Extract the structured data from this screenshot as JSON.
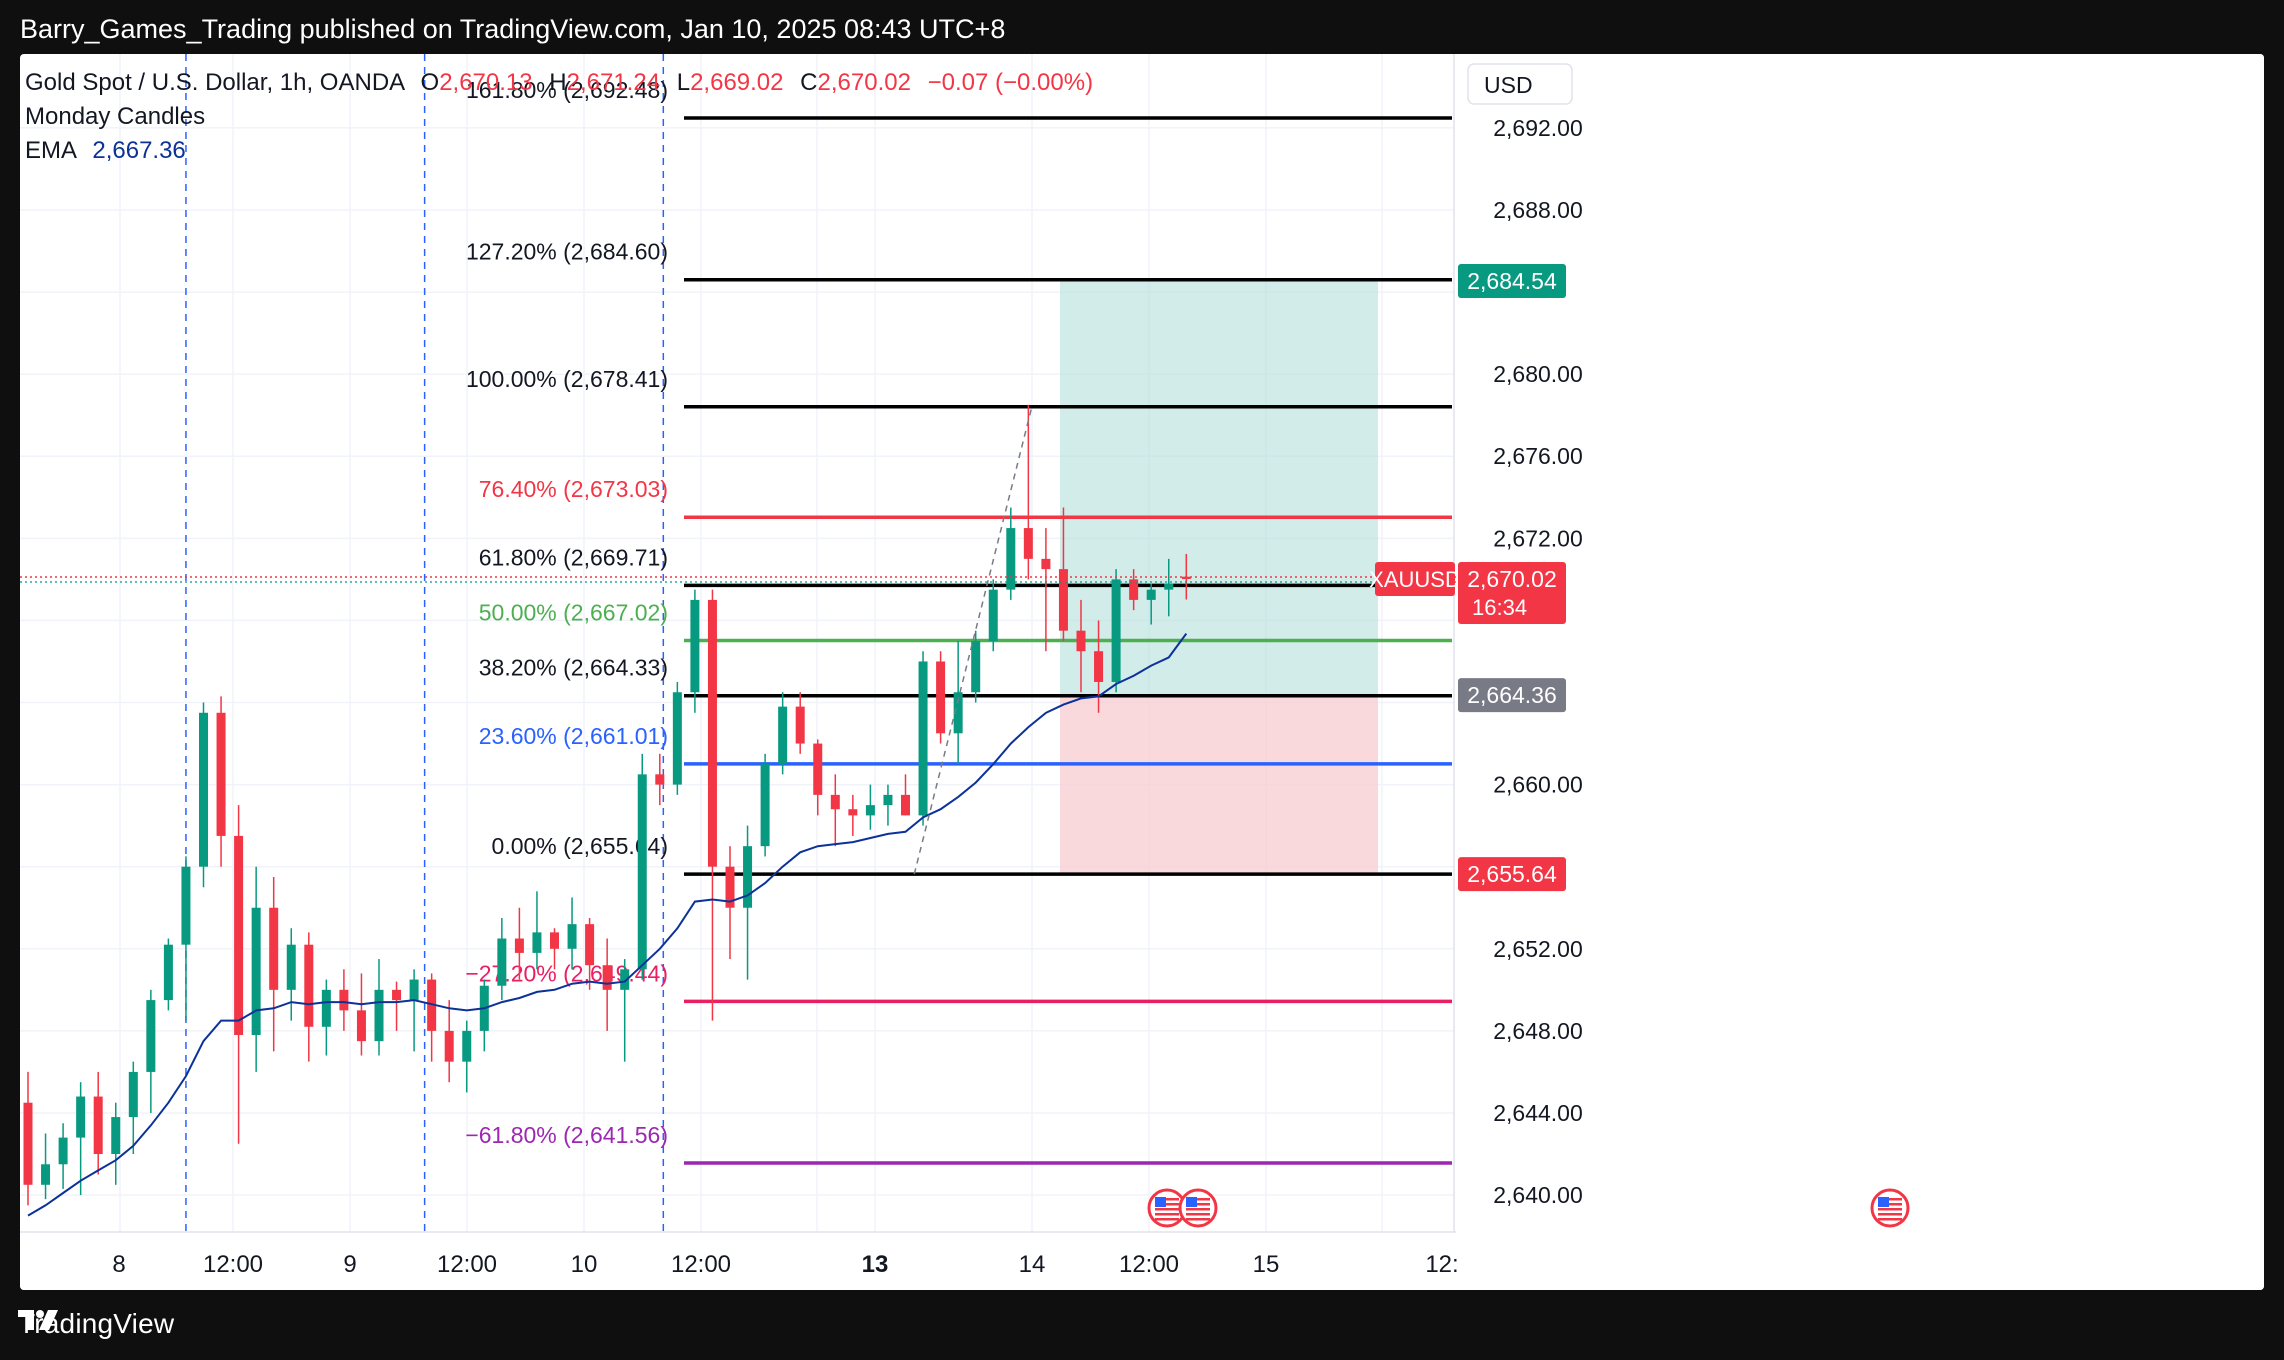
{
  "header": {
    "publisher": "Barry_Games_Trading published on TradingView.com, Jan 10, 2025 08:43 UTC+8"
  },
  "footer": {
    "brand": "TradingView",
    "logo_icon": "tradingview-logo-icon"
  },
  "legend": {
    "symbol": "Gold Spot / U.S. Dollar, 1h, OANDA",
    "open_label": "O",
    "open": "2,670.13",
    "high_label": "H",
    "high": "2,671.24",
    "low_label": "L",
    "low": "2,669.02",
    "close_label": "C",
    "close": "2,670.02",
    "change": "−0.07 (−0.00%)",
    "indicator1": "Monday Candles",
    "ema_label": "EMA",
    "ema_value": "2,667.36"
  },
  "price_axis": {
    "currency": "USD",
    "ticks": [
      "2,692.00",
      "2,688.00",
      "2,680.00",
      "2,676.00",
      "2,672.00",
      "2,660.00",
      "2,652.00",
      "2,648.00",
      "2,644.00",
      "2,640.00"
    ],
    "tick_values": [
      2692,
      2688,
      2680,
      2676,
      2672,
      2660,
      2652,
      2648,
      2644,
      2640
    ],
    "badges": [
      {
        "label": "2,684.54",
        "value": 2684.54,
        "color": "#089981"
      },
      {
        "label": "2,664.36",
        "value": 2664.36,
        "color": "#787b86"
      },
      {
        "label": "2,655.64",
        "value": 2655.64,
        "color": "#f23645"
      }
    ],
    "current": {
      "symbol": "XAUUSD",
      "price": "2,670.02",
      "countdown": "16:34",
      "value": 2670.02,
      "color": "#f23645"
    }
  },
  "time_axis": {
    "labels": [
      {
        "text": "8",
        "bold": false
      },
      {
        "text": "12:00",
        "bold": false
      },
      {
        "text": "9",
        "bold": false
      },
      {
        "text": "12:00",
        "bold": false
      },
      {
        "text": "10",
        "bold": false
      },
      {
        "text": "12:00",
        "bold": false
      },
      {
        "text": "13",
        "bold": true
      },
      {
        "text": "14",
        "bold": false
      },
      {
        "text": "12:00",
        "bold": false
      },
      {
        "text": "15",
        "bold": false
      },
      {
        "text": "12:",
        "bold": false
      }
    ]
  },
  "fib_levels": [
    {
      "label": "161.80% (2,692.48)",
      "value": 2692.48,
      "color": "#000000",
      "text_color": "#131722"
    },
    {
      "label": "127.20% (2,684.60)",
      "value": 2684.6,
      "color": "#000000",
      "text_color": "#131722"
    },
    {
      "label": "100.00% (2,678.41)",
      "value": 2678.41,
      "color": "#000000",
      "text_color": "#131722"
    },
    {
      "label": "76.40% (2,673.03)",
      "value": 2673.03,
      "color": "#f23645",
      "text_color": "#f23645"
    },
    {
      "label": "61.80% (2,669.71)",
      "value": 2669.71,
      "color": "#000000",
      "text_color": "#131722"
    },
    {
      "label": "50.00% (2,667.02)",
      "value": 2667.02,
      "color": "#4caf50",
      "text_color": "#4caf50"
    },
    {
      "label": "38.20% (2,664.33)",
      "value": 2664.33,
      "color": "#000000",
      "text_color": "#131722"
    },
    {
      "label": "23.60% (2,661.01)",
      "value": 2661.01,
      "color": "#2962ff",
      "text_color": "#2962ff"
    },
    {
      "label": "0.00% (2,655.64)",
      "value": 2655.64,
      "color": "#000000",
      "text_color": "#131722"
    },
    {
      "label": "−27.20% (2,649.44)",
      "value": 2649.44,
      "color": "#e91e63",
      "text_color": "#e91e63"
    },
    {
      "label": "−61.80% (2,641.56)",
      "value": 2641.56,
      "color": "#9c27b0",
      "text_color": "#9c27b0"
    }
  ],
  "position_tool": {
    "target": 2684.54,
    "entry": 2664.36,
    "stop": 2655.64,
    "profit_color": "#b2dfdb",
    "loss_color": "#f8c9ce"
  },
  "events": [
    {
      "icon": "us-flag-icon"
    },
    {
      "icon": "us-flag-icon"
    },
    {
      "icon": "us-flag-icon"
    }
  ],
  "colors": {
    "up": "#089981",
    "down": "#f23645",
    "ema": "#0c3299",
    "session": "#2962ff"
  },
  "chart_data": {
    "type": "candlestick",
    "symbol": "XAUUSD",
    "timeframe": "1h",
    "ylim": [
      2638.2,
      2695.6
    ],
    "candles": [
      [
        2644.5,
        2646.0,
        2639.5,
        2640.5
      ],
      [
        2640.5,
        2643.0,
        2639.8,
        2641.5
      ],
      [
        2641.5,
        2643.5,
        2640.3,
        2642.8
      ],
      [
        2642.8,
        2645.5,
        2640.0,
        2644.8
      ],
      [
        2644.8,
        2646.0,
        2641.0,
        2642.0
      ],
      [
        2642.0,
        2644.5,
        2640.5,
        2643.8
      ],
      [
        2643.8,
        2646.5,
        2642.0,
        2646.0
      ],
      [
        2646.0,
        2650.0,
        2644.0,
        2649.5
      ],
      [
        2649.5,
        2652.5,
        2649.0,
        2652.2
      ],
      [
        2652.2,
        2656.5,
        2648.5,
        2656.0
      ],
      [
        2656.0,
        2664.0,
        2655.0,
        2663.5
      ],
      [
        2663.5,
        2664.3,
        2656.0,
        2657.5
      ],
      [
        2657.5,
        2659.0,
        2642.5,
        2647.8
      ],
      [
        2647.8,
        2656.0,
        2646.0,
        2654.0
      ],
      [
        2654.0,
        2655.5,
        2647.0,
        2650.0
      ],
      [
        2650.0,
        2653.0,
        2648.5,
        2652.2
      ],
      [
        2652.2,
        2652.8,
        2646.5,
        2648.2
      ],
      [
        2648.2,
        2650.5,
        2646.8,
        2650.0
      ],
      [
        2650.0,
        2651.0,
        2648.0,
        2649.0
      ],
      [
        2649.0,
        2650.8,
        2646.8,
        2647.5
      ],
      [
        2647.5,
        2651.5,
        2646.8,
        2650.0
      ],
      [
        2650.0,
        2650.4,
        2648.0,
        2649.5
      ],
      [
        2649.5,
        2651.0,
        2647.0,
        2650.5
      ],
      [
        2650.5,
        2650.8,
        2646.5,
        2648.0
      ],
      [
        2648.0,
        2649.5,
        2645.5,
        2646.5
      ],
      [
        2646.5,
        2648.5,
        2645.0,
        2648.0
      ],
      [
        2648.0,
        2650.5,
        2647.0,
        2650.2
      ],
      [
        2650.2,
        2653.5,
        2649.5,
        2652.5
      ],
      [
        2652.5,
        2654.0,
        2650.5,
        2651.8
      ],
      [
        2651.8,
        2654.8,
        2651.0,
        2652.8
      ],
      [
        2652.8,
        2653.0,
        2651.0,
        2652.0
      ],
      [
        2652.0,
        2654.5,
        2651.0,
        2653.2
      ],
      [
        2653.2,
        2653.5,
        2650.0,
        2651.2
      ],
      [
        2651.2,
        2652.5,
        2648.0,
        2650.0
      ],
      [
        2650.0,
        2651.5,
        2646.5,
        2651.0
      ],
      [
        2651.0,
        2661.5,
        2650.5,
        2660.5
      ],
      [
        2660.5,
        2661.5,
        2659.0,
        2660.0
      ],
      [
        2660.0,
        2665.0,
        2659.5,
        2664.5
      ],
      [
        2664.5,
        2669.5,
        2663.5,
        2669.0
      ],
      [
        2669.0,
        2669.5,
        2648.5,
        2656.0
      ],
      [
        2656.0,
        2657.0,
        2651.5,
        2654.0
      ],
      [
        2654.0,
        2658.0,
        2650.5,
        2657.0
      ],
      [
        2657.0,
        2661.5,
        2656.5,
        2661.0
      ],
      [
        2661.0,
        2664.5,
        2660.5,
        2663.8
      ],
      [
        2663.8,
        2664.5,
        2661.5,
        2662.0
      ],
      [
        2662.0,
        2662.2,
        2658.5,
        2659.5
      ],
      [
        2659.5,
        2660.5,
        2657.0,
        2658.8
      ],
      [
        2658.8,
        2659.5,
        2657.5,
        2658.5
      ],
      [
        2658.5,
        2660.0,
        2657.8,
        2659.0
      ],
      [
        2659.0,
        2660.0,
        2658.0,
        2659.5
      ],
      [
        2659.5,
        2660.5,
        2658.5,
        2658.5
      ],
      [
        2658.5,
        2666.5,
        2658.0,
        2666.0
      ],
      [
        2666.0,
        2666.5,
        2662.0,
        2662.5
      ],
      [
        2662.5,
        2667.0,
        2661.0,
        2664.5
      ],
      [
        2664.5,
        2667.5,
        2664.0,
        2667.0
      ],
      [
        2667.0,
        2670.0,
        2666.5,
        2669.5
      ],
      [
        2669.5,
        2673.5,
        2669.0,
        2672.5
      ],
      [
        2672.5,
        2678.5,
        2670.0,
        2671.0
      ],
      [
        2671.0,
        2672.5,
        2666.5,
        2670.5
      ],
      [
        2670.5,
        2673.5,
        2667.0,
        2667.5
      ],
      [
        2667.5,
        2669.0,
        2664.5,
        2666.5
      ],
      [
        2666.5,
        2668.0,
        2663.5,
        2665.0
      ],
      [
        2665.0,
        2670.5,
        2664.5,
        2670.0
      ],
      [
        2670.0,
        2670.5,
        2668.5,
        2669.0
      ],
      [
        2669.0,
        2669.8,
        2667.8,
        2669.5
      ],
      [
        2669.5,
        2671.0,
        2668.2,
        2669.8
      ],
      [
        2670.13,
        2671.24,
        2669.02,
        2670.02
      ]
    ],
    "ema": [
      2639.0,
      2639.5,
      2640.1,
      2640.7,
      2641.2,
      2641.7,
      2642.4,
      2643.4,
      2644.5,
      2645.8,
      2647.5,
      2648.5,
      2648.5,
      2649.0,
      2649.1,
      2649.4,
      2649.3,
      2649.4,
      2649.4,
      2649.3,
      2649.4,
      2649.4,
      2649.5,
      2649.3,
      2649.1,
      2649.0,
      2649.1,
      2649.4,
      2649.6,
      2649.9,
      2650.0,
      2650.3,
      2650.4,
      2650.3,
      2650.4,
      2651.2,
      2652.0,
      2653.0,
      2654.3,
      2654.4,
      2654.3,
      2654.6,
      2655.2,
      2656.0,
      2656.7,
      2657.0,
      2657.1,
      2657.2,
      2657.4,
      2657.6,
      2657.7,
      2658.4,
      2658.8,
      2659.4,
      2660.1,
      2661.0,
      2662.0,
      2662.8,
      2663.5,
      2663.9,
      2664.2,
      2664.3,
      2664.9,
      2665.3,
      2665.8,
      2666.2,
      2667.36
    ]
  }
}
